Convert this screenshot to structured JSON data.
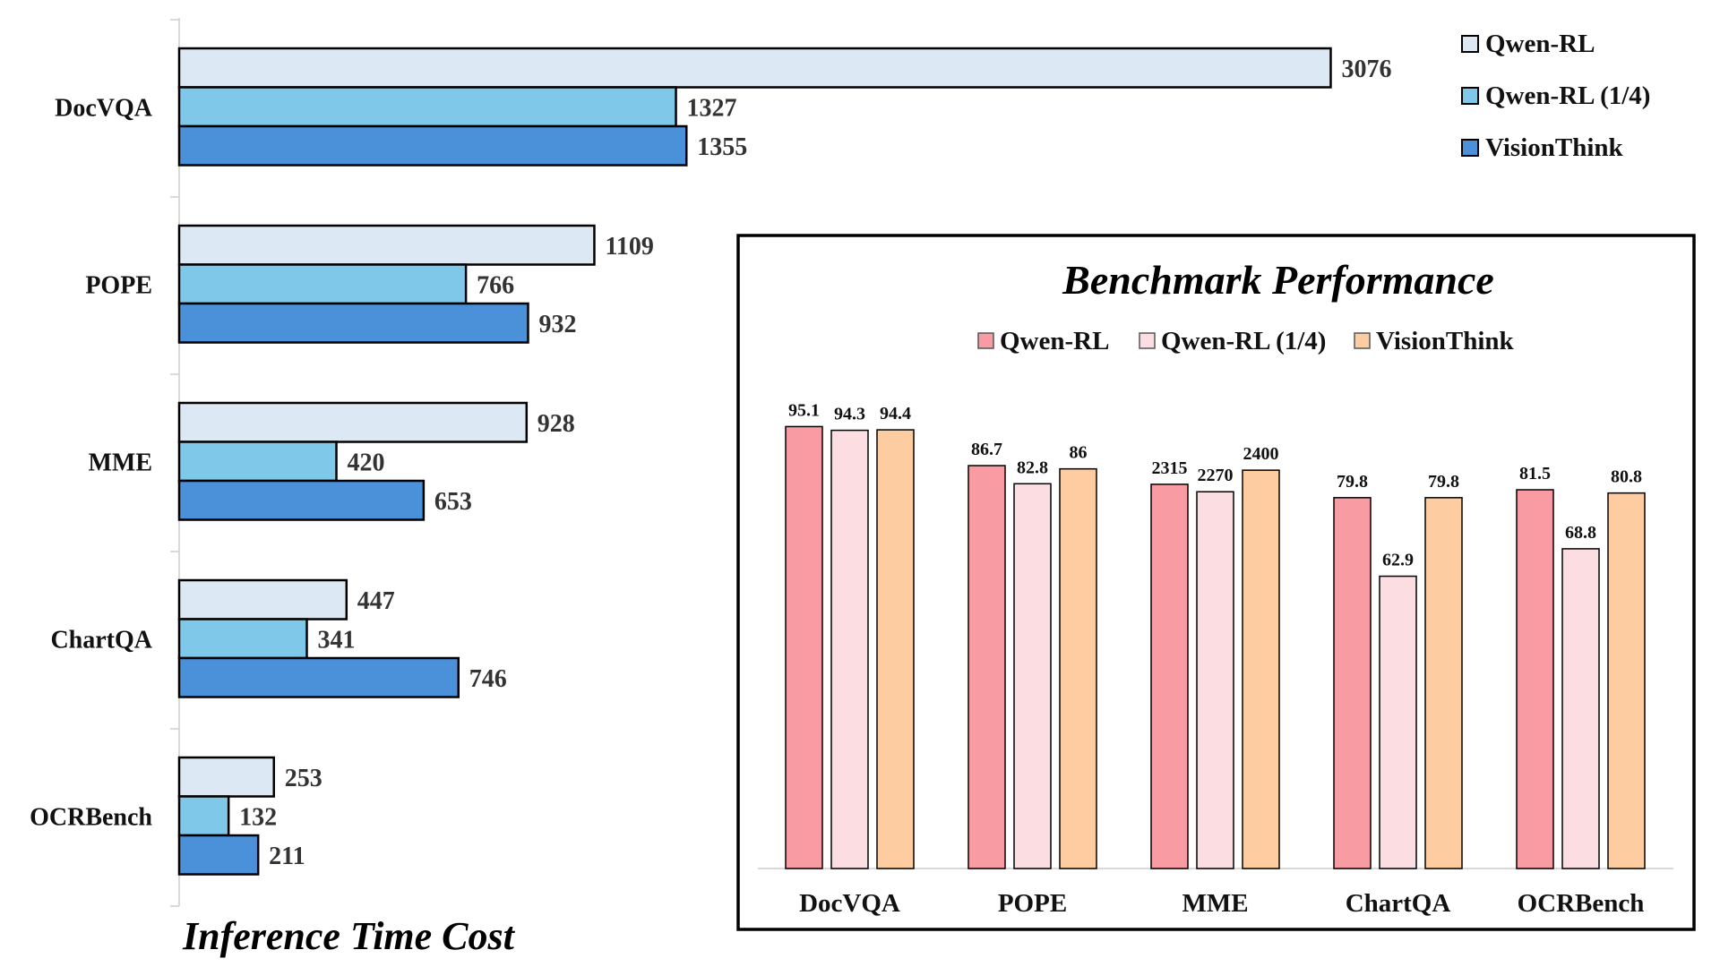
{
  "chart_data": [
    {
      "type": "bar",
      "orientation": "horizontal",
      "title": "Inference Time Cost",
      "categories": [
        "DocVQA",
        "POPE",
        "MME",
        "ChartQA",
        "OCRBench"
      ],
      "series": [
        {
          "name": "Qwen-RL",
          "values": [
            3076,
            1109,
            928,
            447,
            253
          ],
          "color": "#dce9f5"
        },
        {
          "name": "Qwen-RL (1/4)",
          "values": [
            1327,
            766,
            420,
            341,
            132
          ],
          "color": "#7fc8ea"
        },
        {
          "name": "VisionThink",
          "values": [
            1355,
            932,
            653,
            746,
            211
          ],
          "color": "#4b91d9"
        }
      ],
      "xlim": [
        0,
        3200
      ],
      "legend_position": "top-right",
      "grid": false
    },
    {
      "type": "bar",
      "orientation": "vertical",
      "title": "Benchmark Performance",
      "categories": [
        "DocVQA",
        "POPE",
        "MME",
        "ChartQA",
        "OCRBench"
      ],
      "series": [
        {
          "name": "Qwen-RL",
          "values": [
            95.1,
            86.7,
            2315,
            79.8,
            81.5
          ],
          "color": "#f99ba2"
        },
        {
          "name": "Qwen-RL (1/4)",
          "values": [
            94.3,
            82.8,
            2270,
            62.9,
            68.8
          ],
          "color": "#fcdde2"
        },
        {
          "name": "VisionThink",
          "values": [
            94.4,
            86,
            2400,
            79.8,
            80.8
          ],
          "color": "#fdcda1"
        }
      ],
      "scale_note": "MME (max 2800) drawn on a separate scale from the other benchmarks (max 100)",
      "category_scale_max": [
        100,
        100,
        2800,
        100,
        100
      ],
      "legend_position": "top",
      "grid": false
    }
  ]
}
